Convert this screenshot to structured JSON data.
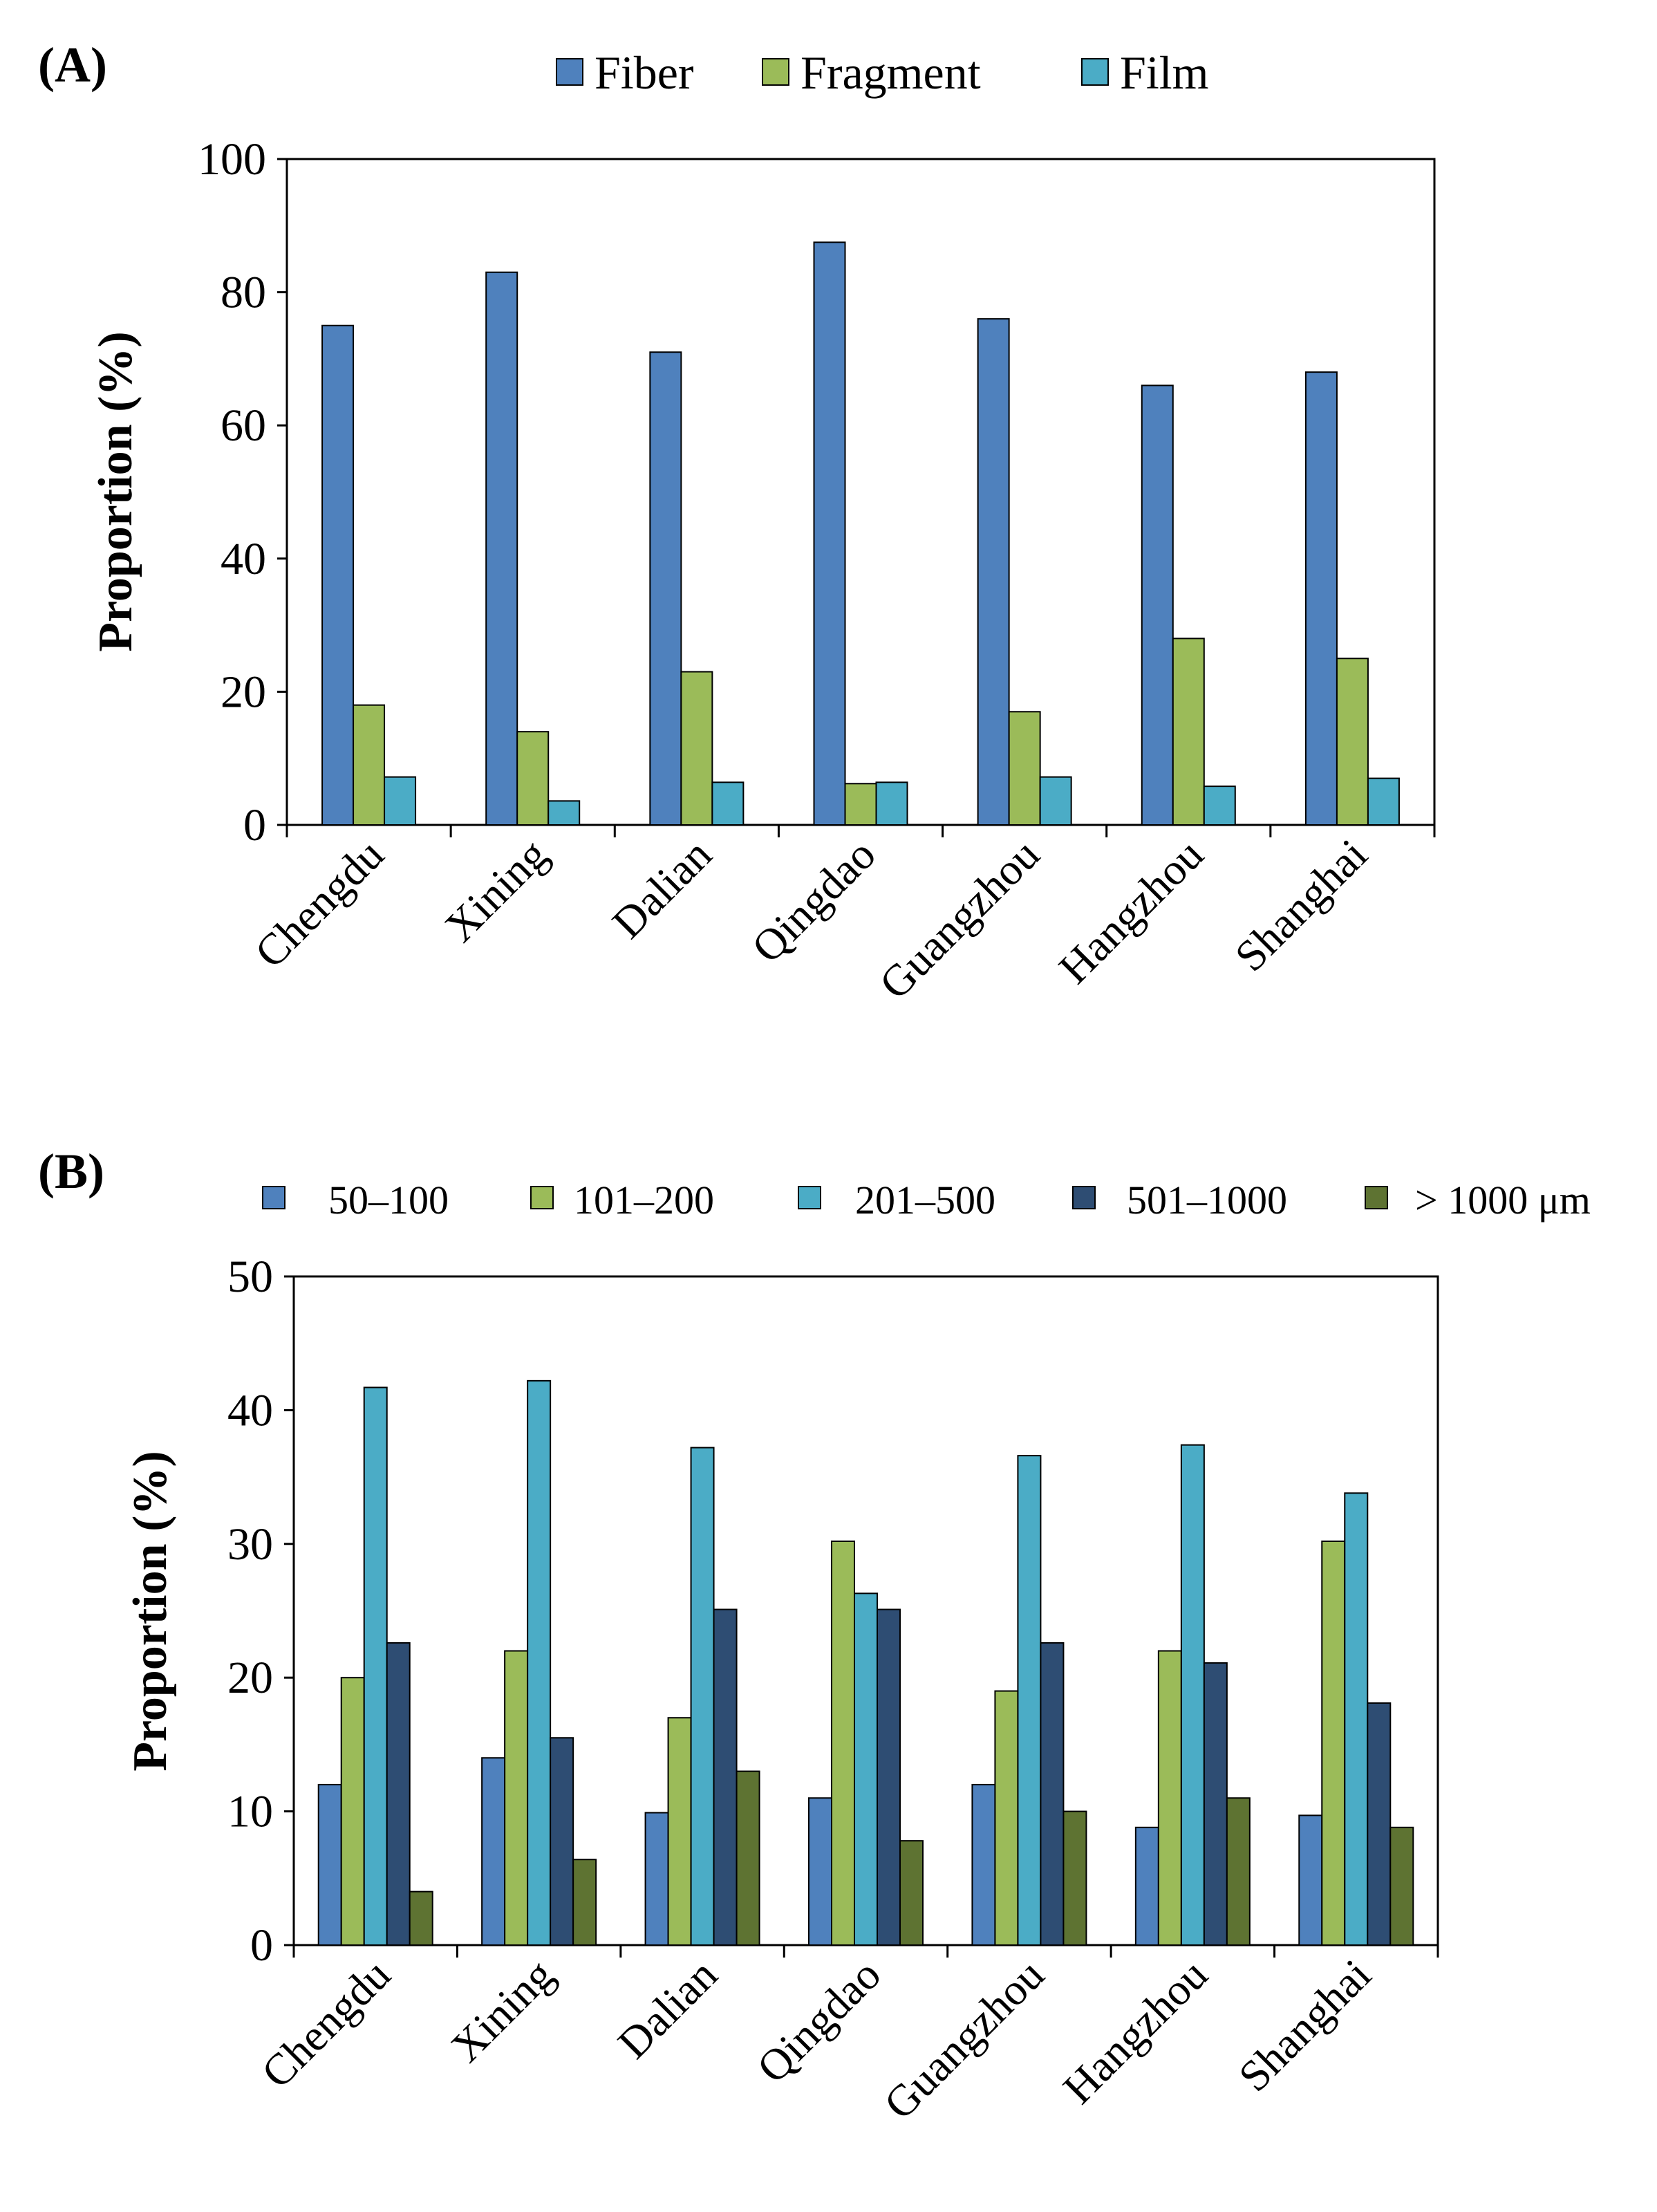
{
  "chart_data": [
    {
      "panel_label": "(A)",
      "type": "bar",
      "title": "",
      "xlabel": "",
      "ylabel": "Proportion (%)",
      "ylim": [
        0,
        100
      ],
      "yticks": [
        "0",
        "20",
        "40",
        "60",
        "80",
        "100"
      ],
      "ytick_values": [
        0,
        20,
        40,
        60,
        80,
        100
      ],
      "grid": false,
      "legend_position": "top",
      "categories": [
        "Chengdu",
        "Xining",
        "Dalian",
        "Qingdao",
        "Guangzhou",
        "Hangzhou",
        "Shanghai"
      ],
      "series": [
        {
          "name": "Fiber",
          "color": "#4f81bd",
          "values": [
            75,
            83,
            71,
            87.5,
            76,
            66,
            68
          ]
        },
        {
          "name": "Fragment",
          "color": "#9bbb59",
          "values": [
            18,
            14,
            23,
            6.2,
            17,
            28,
            25
          ]
        },
        {
          "name": "Film",
          "color": "#4bacc6",
          "values": [
            7.2,
            3.6,
            6.4,
            6.4,
            7.2,
            5.8,
            7
          ]
        }
      ]
    },
    {
      "panel_label": "(B)",
      "type": "bar",
      "title": "",
      "xlabel": "",
      "ylabel": "Proportion (%)",
      "ylim": [
        0,
        50
      ],
      "yticks": [
        "0",
        "10",
        "20",
        "30",
        "40",
        "50"
      ],
      "ytick_values": [
        0,
        10,
        20,
        30,
        40,
        50
      ],
      "grid": false,
      "legend_position": "top",
      "categories": [
        "Chengdu",
        "Xining",
        "Dalian",
        "Qingdao",
        "Guangzhou",
        "Hangzhou",
        "Shanghai"
      ],
      "series": [
        {
          "name": "50–100",
          "color": "#4f81bd",
          "values": [
            12,
            14,
            9.9,
            11,
            12,
            8.8,
            9.7
          ]
        },
        {
          "name": "101–200",
          "color": "#9bbb59",
          "values": [
            20,
            22,
            17,
            30.2,
            19,
            22,
            30.2
          ]
        },
        {
          "name": "201–500",
          "color": "#4bacc6",
          "values": [
            41.7,
            42.2,
            37.2,
            26.3,
            36.6,
            37.4,
            33.8
          ]
        },
        {
          "name": "501–1000",
          "color": "#2e4d73",
          "values": [
            22.6,
            15.5,
            25.1,
            25.1,
            22.6,
            21.1,
            18.1
          ]
        },
        {
          "name": "> 1000 μm",
          "color": "#5e7332",
          "values": [
            4,
            6.4,
            13,
            7.8,
            10,
            11,
            8.8
          ]
        }
      ]
    }
  ]
}
